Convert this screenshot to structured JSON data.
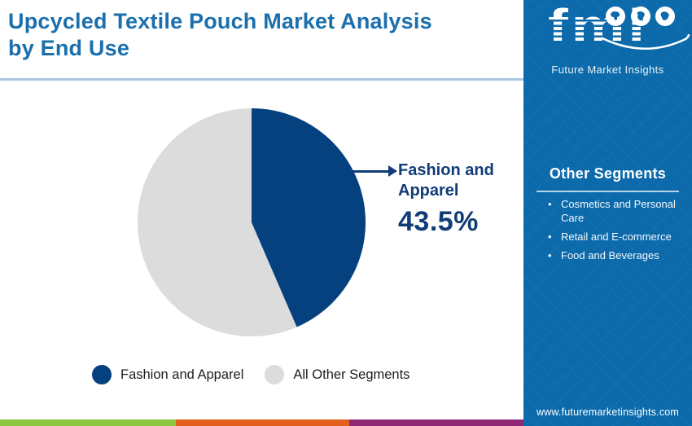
{
  "header": {
    "title": "Upcycled Textile Pouch Market Analysis by End Use"
  },
  "logo": {
    "text": "fmi",
    "subtitle": "Future Market Insights"
  },
  "sidebar": {
    "other_segments": {
      "title": "Other Segments",
      "items": [
        "Cosmetics and Personal Care",
        "Retail and E-commerce",
        "Food and Beverages"
      ]
    },
    "website": "www.futuremarketinsights.com"
  },
  "callout": {
    "label": "Fashion and Apparel",
    "value": "43.5%"
  },
  "legend": [
    {
      "label": "Fashion and Apparel",
      "color": "#05417f"
    },
    {
      "label": "All Other Segments",
      "color": "#dcdcdc"
    }
  ],
  "chart_data": {
    "type": "pie",
    "title": "Upcycled Textile Pouch Market Analysis by End Use",
    "labels": [
      "Fashion and Apparel",
      "All Other Segments"
    ],
    "values": [
      43.5,
      56.5
    ],
    "colors": [
      "#05417f",
      "#dcdcdc"
    ],
    "start_angle_deg": 0,
    "direction": "clockwise",
    "annotation": {
      "label": "Fashion and Apparel",
      "value_pct": 43.5
    },
    "legend_position": "bottom"
  },
  "colors": {
    "title_text": "#1b6fad",
    "callout_text": "#113c78",
    "sidebar_bg": "#0c6aab",
    "header_divider": "#a9c6e2",
    "stripe_green": "#8cc63f",
    "stripe_orange": "#e35f1e",
    "stripe_purple": "#8e2876"
  }
}
